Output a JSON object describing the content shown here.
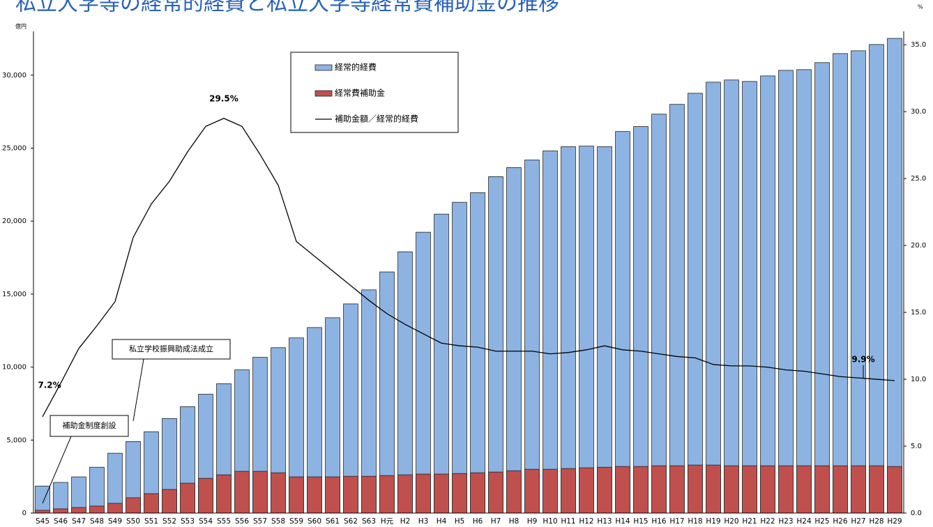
{
  "chart_data": {
    "type": "bar-line",
    "title": "私立大学等の経常的経費と私立大学等経常費補助金の推移",
    "y_unit": "億円",
    "y2_unit": "%",
    "categories": [
      "S45",
      "S46",
      "S47",
      "S48",
      "S49",
      "S50",
      "S51",
      "S52",
      "S53",
      "S54",
      "S55",
      "S56",
      "S57",
      "S58",
      "S59",
      "S60",
      "S61",
      "S62",
      "S63",
      "H元",
      "H2",
      "H3",
      "H4",
      "H5",
      "H6",
      "H7",
      "H8",
      "H9",
      "H10",
      "H11",
      "H12",
      "H13",
      "H14",
      "H15",
      "H16",
      "H17",
      "H18",
      "H19",
      "H20",
      "H21",
      "H22",
      "H23",
      "H24",
      "H25",
      "H26",
      "H27",
      "H28",
      "H29"
    ],
    "series": [
      {
        "name": "経常的経費",
        "color": "#8db3e2",
        "values": [
          1850,
          2100,
          2480,
          3140,
          4100,
          4900,
          5570,
          6480,
          7290,
          8140,
          8860,
          9810,
          10670,
          11330,
          12000,
          12710,
          13380,
          14330,
          15290,
          16520,
          17900,
          19240,
          20480,
          21290,
          21950,
          23050,
          23670,
          24190,
          24810,
          25100,
          25140,
          25100,
          26140,
          26480,
          27330,
          28000,
          28760,
          29520,
          29670,
          29570,
          29950,
          30330,
          30380,
          30860,
          31480,
          31670,
          32100,
          32520
        ]
      },
      {
        "name": "経常費補助金",
        "color": "#c0504d",
        "values": [
          190,
          290,
          380,
          480,
          670,
          1050,
          1330,
          1620,
          2050,
          2380,
          2620,
          2860,
          2860,
          2760,
          2480,
          2480,
          2480,
          2520,
          2520,
          2570,
          2620,
          2670,
          2670,
          2710,
          2760,
          2810,
          2900,
          3000,
          3000,
          3050,
          3100,
          3140,
          3190,
          3190,
          3240,
          3240,
          3290,
          3290,
          3240,
          3240,
          3240,
          3240,
          3240,
          3240,
          3240,
          3240,
          3240,
          3190
        ]
      },
      {
        "name": "補助金額／経常的経費",
        "color": "#000000",
        "axis": "y2",
        "type": "line",
        "values": [
          7.2,
          9.7,
          12.3,
          14.0,
          15.8,
          20.6,
          23.1,
          24.8,
          27.0,
          28.9,
          29.5,
          28.9,
          26.8,
          24.5,
          20.3,
          19.2,
          18.1,
          17.0,
          15.9,
          14.9,
          14.1,
          13.4,
          12.7,
          12.5,
          12.4,
          12.1,
          12.1,
          12.1,
          11.9,
          12.0,
          12.2,
          12.5,
          12.2,
          12.1,
          11.9,
          11.7,
          11.6,
          11.1,
          11.0,
          11.0,
          10.9,
          10.7,
          10.6,
          10.4,
          10.2,
          10.1,
          10.0,
          9.9
        ],
        "value_labels": [
          "7.2%",
          null,
          null,
          null,
          null,
          null,
          null,
          null,
          null,
          null,
          "29.5%",
          null,
          null,
          null,
          null,
          null,
          null,
          null,
          null,
          null,
          null,
          null,
          null,
          null,
          null,
          null,
          null,
          null,
          null,
          null,
          null,
          null,
          null,
          null,
          null,
          null,
          null,
          null,
          null,
          null,
          null,
          null,
          null,
          null,
          null,
          null,
          null,
          "9.9%"
        ]
      }
    ],
    "ylim": [
      0,
      33000
    ],
    "yticks": [
      0,
      {
        "value": 5000,
        "label": "5,000"
      },
      {
        "value": 10000,
        "label": "10,000"
      },
      {
        "value": 15000,
        "label": "15,000"
      },
      {
        "value": 20000,
        "label": "20,000"
      },
      {
        "value": 25000,
        "label": "25,000"
      },
      {
        "value": 30000,
        "label": "30,000"
      }
    ],
    "y2lim": [
      0,
      36
    ],
    "y2ticks": [
      {
        "value": 0,
        "label": "0.0"
      },
      {
        "value": 5,
        "label": "5.0"
      },
      {
        "value": 10,
        "label": "10.0"
      },
      {
        "value": 15,
        "label": "15.0"
      },
      {
        "value": 20,
        "label": "20.0"
      },
      {
        "value": 25,
        "label": "25.0"
      },
      {
        "value": 30,
        "label": "30.0"
      },
      {
        "value": 35,
        "label": "35.0"
      }
    ],
    "annotations": [
      "補助金制度創設",
      "私立学校振興助成法成立"
    ]
  }
}
